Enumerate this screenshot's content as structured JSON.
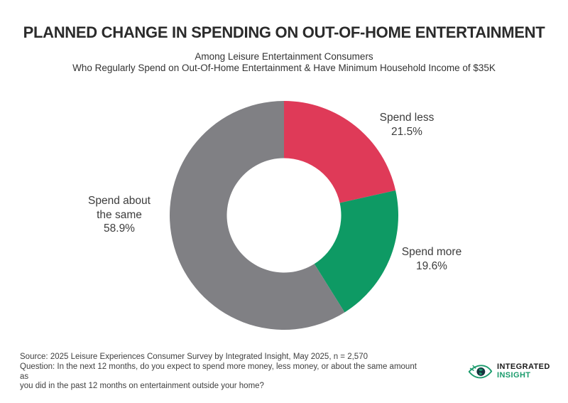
{
  "title": "PLANNED CHANGE IN SPENDING ON OUT-OF-HOME ENTERTAINMENT",
  "subtitle": {
    "line1": "Among Leisure Entertainment Consumers",
    "line2": "Who Regularly Spend on Out-Of-Home Entertainment & Have Minimum Household Income of $35K"
  },
  "chart_data": {
    "type": "pie",
    "subtype": "donut",
    "title": "PLANNED CHANGE IN SPENDING ON OUT-OF-HOME ENTERTAINMENT",
    "categories": [
      "Spend less",
      "Spend more",
      "Spend about the same"
    ],
    "values": [
      21.5,
      19.6,
      58.9
    ],
    "value_labels": [
      "21.5%",
      "19.6%",
      "58.9%"
    ],
    "colors": [
      "#DF3A58",
      "#0E9A64",
      "#808084"
    ],
    "start_angle_deg": 0,
    "direction": "clockwise",
    "inner_radius_ratio": 0.5,
    "legend_position": "outside-labels"
  },
  "labels": {
    "spend_less": {
      "line1": "Spend less",
      "line2": "21.5%"
    },
    "spend_more": {
      "line1": "Spend more",
      "line2": "19.6%"
    },
    "spend_same": {
      "line1": "Spend about",
      "line2": "the same",
      "line3": "58.9%"
    }
  },
  "footer": {
    "line1": "Source: 2025 Leisure Experiences Consumer Survey by Integrated Insight, May 2025, n = 2,570",
    "line2": "Question: In the next 12 months, do you expect to spend more money, less money, or about the same amount as",
    "line3": "you did in the past 12 months on entertainment outside your home?"
  },
  "logo": {
    "line1": "INTEGRATED",
    "line2": "INSIGHT",
    "accent_green": "#1A9B6C",
    "dark": "#1A1A1A"
  }
}
